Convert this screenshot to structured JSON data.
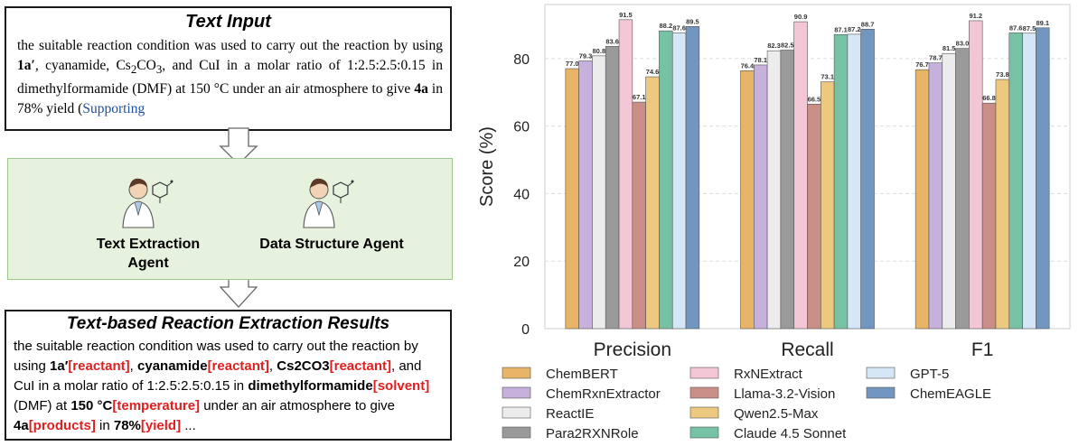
{
  "input_panel": {
    "title": "Text Input",
    "segments": [
      {
        "t": "the suitable reaction condition was used to carry out the reaction by using "
      },
      {
        "t": "1a′",
        "b": true
      },
      {
        "t": ", cyanamide, Cs"
      },
      {
        "t": "2",
        "sub": true
      },
      {
        "t": "CO"
      },
      {
        "t": "3",
        "sub": true
      },
      {
        "t": ", and CuI in a molar ratio of 1:2.5:2.5:0.15 in dimethylformamide (DMF) at 150 °C under an air atmosphere to give "
      },
      {
        "t": "4a",
        "b": true
      },
      {
        "t": " in 78% yield ("
      },
      {
        "t": "Supporting",
        "link": true
      }
    ]
  },
  "agents": {
    "first": "Text Extraction Agent",
    "second": "Data Structure Agent"
  },
  "results_panel": {
    "title": "Text-based Reaction Extraction Results",
    "segments": [
      {
        "t": "the suitable reaction condition was used to carry out the reaction by using "
      },
      {
        "t": "1a′",
        "b": true
      },
      {
        "t": "[reactant]",
        "tag": true
      },
      {
        "t": ", "
      },
      {
        "t": "cyanamide",
        "b": true
      },
      {
        "t": "[reactant]",
        "tag": true
      },
      {
        "t": ", "
      },
      {
        "t": "Cs2CO3",
        "b": true
      },
      {
        "t": "[reactant]",
        "tag": true
      },
      {
        "t": ", and CuI in a molar ratio of 1:2.5:2.5:0.15 in "
      },
      {
        "t": "dimethylformamide",
        "b": true
      },
      {
        "t": "[solvent]",
        "tag": true
      },
      {
        "t": " (DMF) at "
      },
      {
        "t": "150 °C",
        "b": true
      },
      {
        "t": "[temperature]",
        "tag": true
      },
      {
        "t": " under an air atmosphere to give "
      },
      {
        "t": "4a",
        "b": true
      },
      {
        "t": "[products]",
        "tag": true
      },
      {
        "t": " in "
      },
      {
        "t": "78%",
        "b": true
      },
      {
        "t": "[yield]",
        "tag": true
      },
      {
        "t": " ..."
      }
    ]
  },
  "chart_data": {
    "type": "bar",
    "categories": [
      "Precision",
      "Recall",
      "F1"
    ],
    "ylabel": "Score (%)",
    "xlabel": "",
    "ylim": [
      0,
      96
    ],
    "yticks": [
      0,
      20,
      40,
      60,
      80
    ],
    "grid": "horizontal dashed",
    "legend_position": "bottom",
    "series": [
      {
        "name": "ChemBERT",
        "color": "#e8b465",
        "values": [
          77.0,
          76.4,
          76.7
        ]
      },
      {
        "name": "ChemRxnExtractor",
        "color": "#c6b0dc",
        "values": [
          79.3,
          78.1,
          78.7
        ]
      },
      {
        "name": "ReactIE",
        "color": "#ececec",
        "values": [
          80.8,
          82.3,
          81.5
        ]
      },
      {
        "name": "Para2RXNRole",
        "color": "#9a9a9a",
        "values": [
          83.6,
          82.5,
          83.0
        ]
      },
      {
        "name": "RxNExtract",
        "color": "#f2c6d4",
        "values": [
          91.5,
          90.9,
          91.2
        ]
      },
      {
        "name": "Llama-3.2-Vision",
        "color": "#c98e86",
        "values": [
          67.1,
          66.5,
          66.8
        ]
      },
      {
        "name": "Qwen2.5-Max",
        "color": "#ecc97e",
        "values": [
          74.6,
          73.1,
          73.8
        ]
      },
      {
        "name": "Claude 4.5 Sonnet",
        "color": "#77c2a5",
        "values": [
          88.2,
          87.1,
          87.6
        ]
      },
      {
        "name": "GPT-5",
        "color": "#d5e6f7",
        "values": [
          87.6,
          87.2,
          87.5
        ]
      },
      {
        "name": "ChemEAGLE",
        "color": "#7396c1",
        "values": [
          89.5,
          88.7,
          89.1
        ]
      }
    ]
  }
}
